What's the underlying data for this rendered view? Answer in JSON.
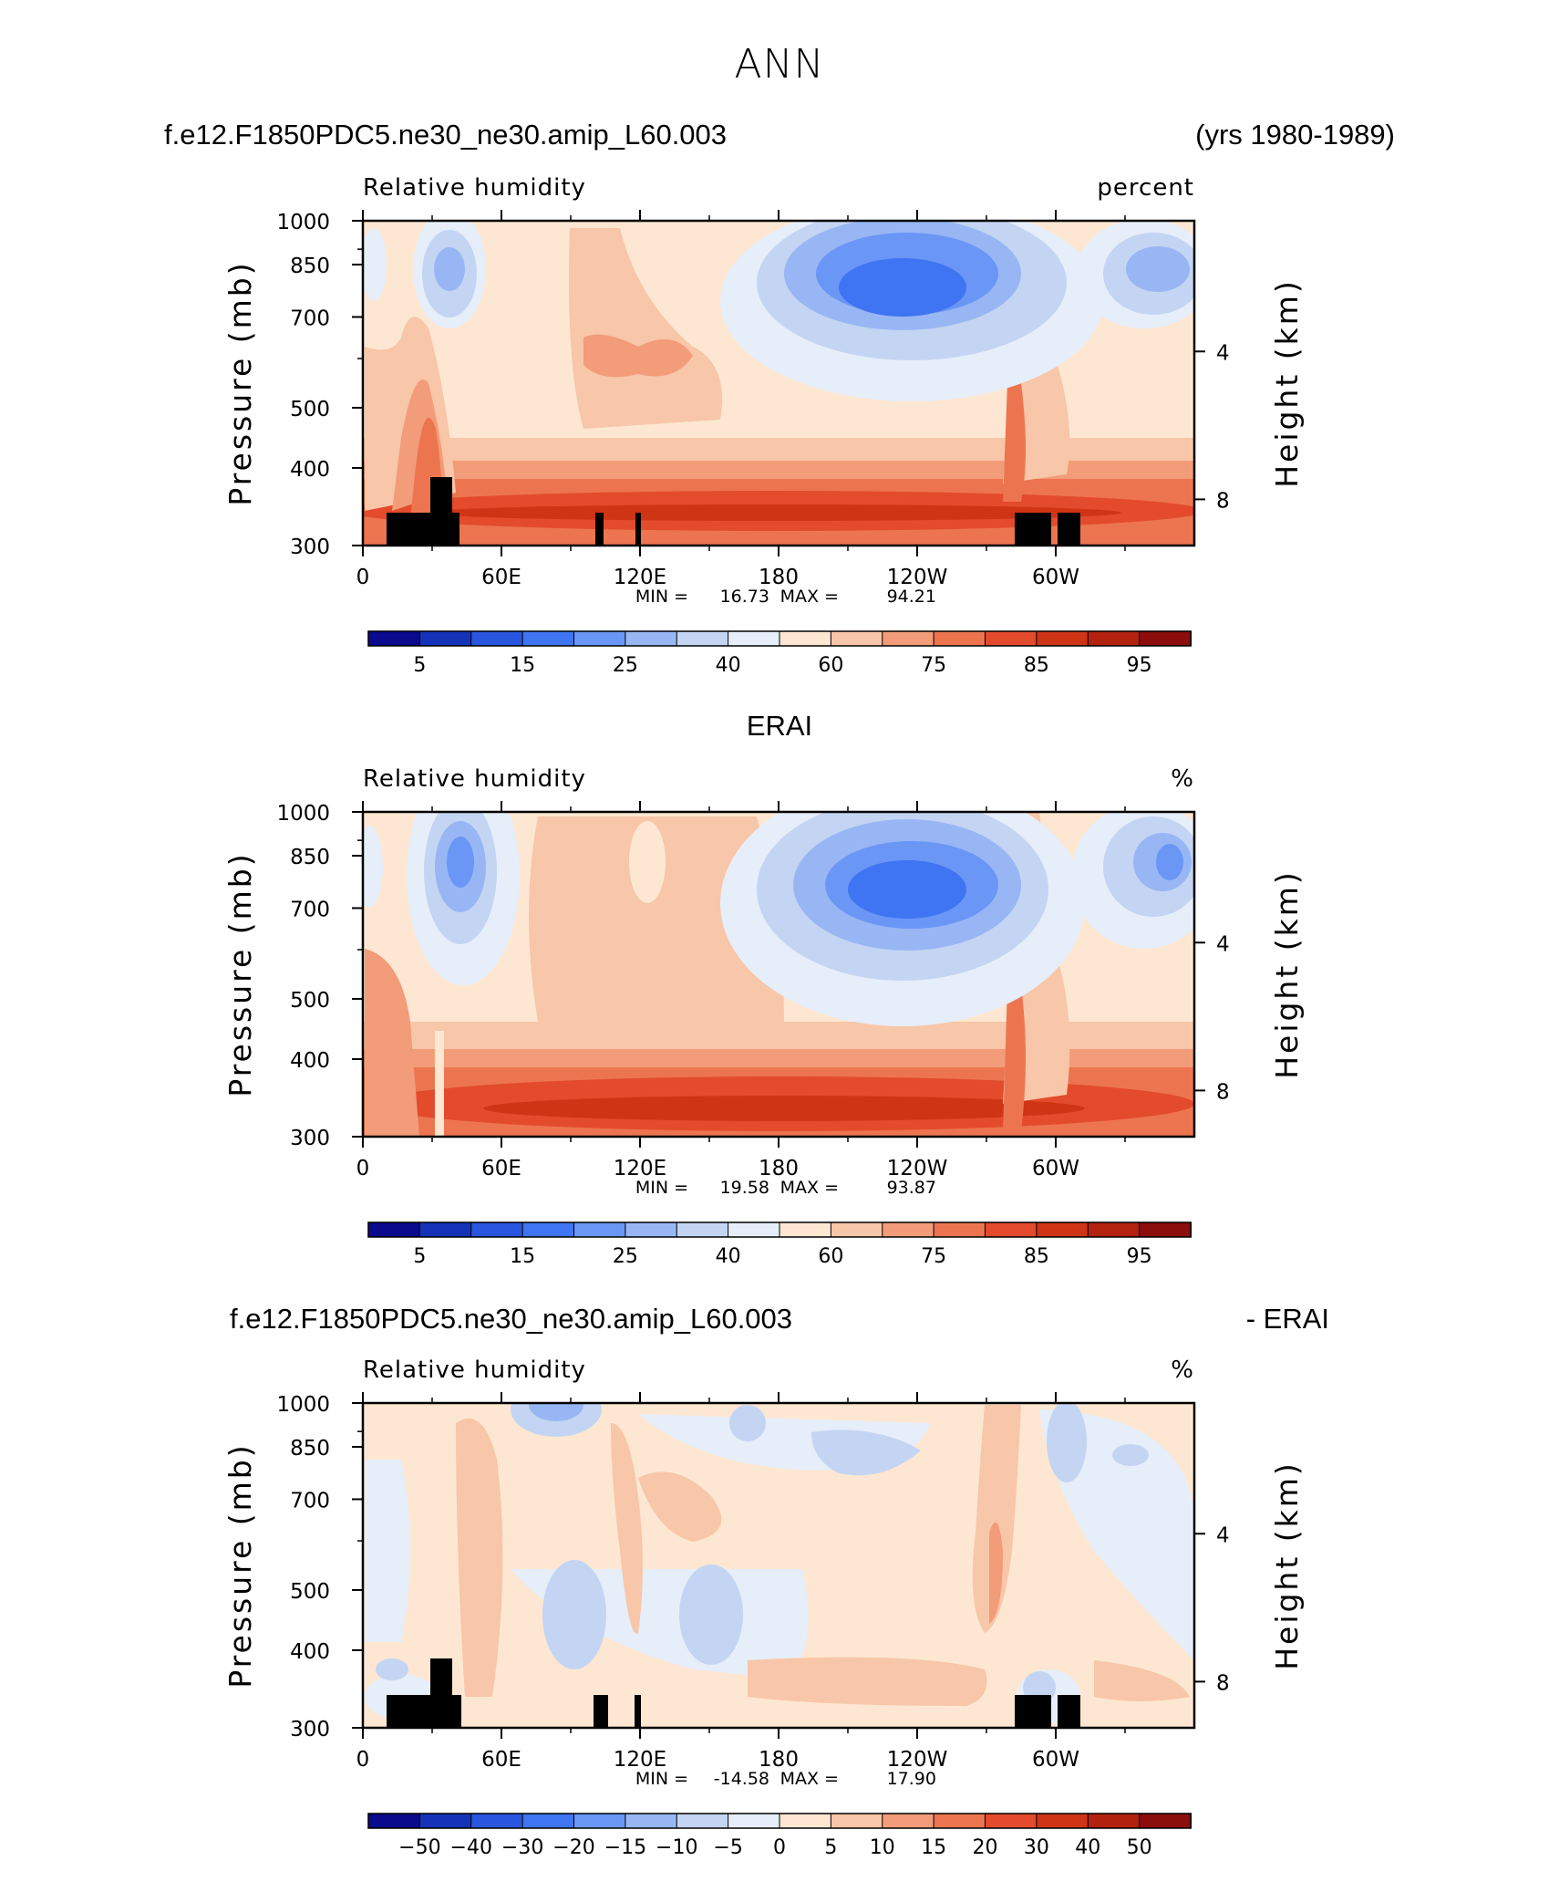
{
  "page": {
    "title": "ANN"
  },
  "colorbar_colors": {
    "full": [
      "#0a0a8c",
      "#1433b8",
      "#2a55de",
      "#3f74f2",
      "#6a96f5",
      "#99b6f4",
      "#c3d5f2",
      "#e6eefa",
      "#fde7d2",
      "#f8c6a8",
      "#f29c79",
      "#ec7550",
      "#e34b2c",
      "#cf3515",
      "#b3220f",
      "#8b0d0c"
    ]
  },
  "chart_data": [
    {
      "type": "heatmap",
      "variable": "Relative humidity",
      "units": "percent",
      "title_left": "f.e12.F1850PDC5.ne30_ne30.amip_L60.003",
      "title_right": "(yrs 1980-1989)",
      "ylabel": "Pressure (mb)",
      "ylabel_right": "Height (km)",
      "xticks": [
        "0",
        "60E",
        "120E",
        "180",
        "120W",
        "60W"
      ],
      "yticks": [
        "300",
        "400",
        "500",
        "700",
        "850",
        "1000"
      ],
      "yticks_right": [
        "8",
        "4"
      ],
      "ylim": [
        1000,
        300
      ],
      "y_scale": "log",
      "min_label": "MIN =",
      "min_value": "16.73",
      "max_label": "MAX =",
      "max_value": "94.21",
      "min": 16.73,
      "max": 94.21,
      "colorbar_labels": [
        "5",
        "15",
        "25",
        "40",
        "60",
        "75",
        "85",
        "95"
      ]
    },
    {
      "type": "heatmap",
      "variable": "Relative humidity",
      "units": "%",
      "title_center": "ERAI",
      "ylabel": "Pressure (mb)",
      "ylabel_right": "Height (km)",
      "xticks": [
        "0",
        "60E",
        "120E",
        "180",
        "120W",
        "60W"
      ],
      "yticks": [
        "300",
        "400",
        "500",
        "700",
        "850",
        "1000"
      ],
      "yticks_right": [
        "8",
        "4"
      ],
      "ylim": [
        1000,
        300
      ],
      "y_scale": "log",
      "min_label": "MIN =",
      "min_value": "19.58",
      "max_label": "MAX =",
      "max_value": "93.87",
      "min": 19.58,
      "max": 93.87,
      "colorbar_labels": [
        "5",
        "15",
        "25",
        "40",
        "60",
        "75",
        "85",
        "95"
      ]
    },
    {
      "type": "heatmap",
      "variable": "Relative humidity",
      "units": "%",
      "title_left": "f.e12.F1850PDC5.ne30_ne30.amip_L60.003",
      "title_right": "- ERAI",
      "ylabel": "Pressure (mb)",
      "ylabel_right": "Height (km)",
      "xticks": [
        "0",
        "60E",
        "120E",
        "180",
        "120W",
        "60W"
      ],
      "yticks": [
        "300",
        "400",
        "500",
        "700",
        "850",
        "1000"
      ],
      "yticks_right": [
        "8",
        "4"
      ],
      "ylim": [
        1000,
        300
      ],
      "y_scale": "log",
      "min_label": "MIN =",
      "min_value": "-14.58",
      "max_label": "MAX =",
      "max_value": "17.90",
      "min": -14.58,
      "max": 17.9,
      "colorbar_labels": [
        "-50",
        "-40",
        "-30",
        "-20",
        "-15",
        "-10",
        "-5",
        "0",
        "5",
        "10",
        "15",
        "20",
        "30",
        "40",
        "50"
      ]
    }
  ]
}
